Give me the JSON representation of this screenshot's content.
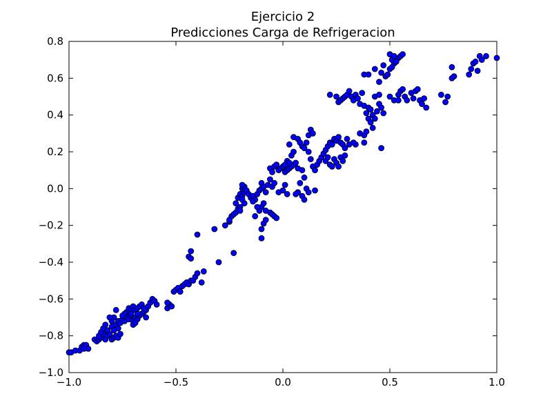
{
  "chart_data": {
    "type": "scatter",
    "title": "Ejercicio 2",
    "subtitle": "Predicciones Carga de Refrigeracion",
    "xlabel": "",
    "ylabel": "",
    "xlim": [
      -1.0,
      1.0
    ],
    "ylim": [
      -1.0,
      0.8
    ],
    "xticks": [
      -1.0,
      -0.5,
      0.0,
      0.5,
      1.0
    ],
    "yticks": [
      -1.0,
      -0.8,
      -0.6,
      -0.4,
      -0.2,
      0.0,
      0.2,
      0.4,
      0.6,
      0.8
    ],
    "xtick_labels": [
      "−1.0",
      "−0.5",
      "0.0",
      "0.5",
      "1.0"
    ],
    "ytick_labels": [
      "−1.0",
      "−0.8",
      "−0.6",
      "−0.4",
      "−0.2",
      "0.0",
      "0.2",
      "0.4",
      "0.6",
      "0.8"
    ],
    "grid": false,
    "legend": false,
    "marker_color": "#0000ff",
    "marker_edge_color": "#000000",
    "points": [
      [
        -1.0,
        -0.89
      ],
      [
        -0.99,
        -0.89
      ],
      [
        -0.97,
        -0.88
      ],
      [
        -0.95,
        -0.88
      ],
      [
        -0.94,
        -0.86
      ],
      [
        -0.93,
        -0.85
      ],
      [
        -0.92,
        -0.85
      ],
      [
        -0.91,
        -0.87
      ],
      [
        -0.93,
        -0.87
      ],
      [
        -0.88,
        -0.82
      ],
      [
        -0.87,
        -0.83
      ],
      [
        -0.86,
        -0.82
      ],
      [
        -0.85,
        -0.81
      ],
      [
        -0.86,
        -0.8
      ],
      [
        -0.84,
        -0.79
      ],
      [
        -0.83,
        -0.82
      ],
      [
        -0.82,
        -0.8
      ],
      [
        -0.81,
        -0.79
      ],
      [
        -0.8,
        -0.82
      ],
      [
        -0.79,
        -0.81
      ],
      [
        -0.78,
        -0.8
      ],
      [
        -0.77,
        -0.81
      ],
      [
        -0.76,
        -0.79
      ],
      [
        -0.83,
        -0.74
      ],
      [
        -0.8,
        -0.75
      ],
      [
        -0.79,
        -0.77
      ],
      [
        -0.78,
        -0.74
      ],
      [
        -0.82,
        -0.77
      ],
      [
        -0.85,
        -0.78
      ],
      [
        -0.8,
        -0.72
      ],
      [
        -0.79,
        -0.7
      ],
      [
        -0.77,
        -0.72
      ],
      [
        -0.76,
        -0.73
      ],
      [
        -0.75,
        -0.71
      ],
      [
        -0.74,
        -0.72
      ],
      [
        -0.73,
        -0.7
      ],
      [
        -0.72,
        -0.71
      ],
      [
        -0.71,
        -0.69
      ],
      [
        -0.7,
        -0.72
      ],
      [
        -0.69,
        -0.7
      ],
      [
        -0.68,
        -0.71
      ],
      [
        -0.67,
        -0.69
      ],
      [
        -0.66,
        -0.68
      ],
      [
        -0.65,
        -0.67
      ],
      [
        -0.64,
        -0.66
      ],
      [
        -0.73,
        -0.67
      ],
      [
        -0.72,
        -0.65
      ],
      [
        -0.71,
        -0.66
      ],
      [
        -0.7,
        -0.64
      ],
      [
        -0.69,
        -0.66
      ],
      [
        -0.68,
        -0.65
      ],
      [
        -0.67,
        -0.64
      ],
      [
        -0.66,
        -0.63
      ],
      [
        -0.65,
        -0.65
      ],
      [
        -0.63,
        -0.64
      ],
      [
        -0.62,
        -0.62
      ],
      [
        -0.61,
        -0.6
      ],
      [
        -0.6,
        -0.61
      ],
      [
        -0.59,
        -0.63
      ],
      [
        -0.78,
        -0.66
      ],
      [
        -0.74,
        -0.68
      ],
      [
        -0.75,
        -0.69
      ],
      [
        -0.7,
        -0.74
      ],
      [
        -0.69,
        -0.73
      ],
      [
        -0.81,
        -0.7
      ],
      [
        -0.84,
        -0.76
      ],
      [
        -0.77,
        -0.76
      ],
      [
        -0.71,
        -0.68
      ],
      [
        -0.68,
        -0.68
      ],
      [
        -0.64,
        -0.7
      ],
      [
        -0.54,
        -0.65
      ],
      [
        -0.53,
        -0.63
      ],
      [
        -0.54,
        -0.62
      ],
      [
        -0.52,
        -0.64
      ],
      [
        -0.51,
        -0.56
      ],
      [
        -0.5,
        -0.55
      ],
      [
        -0.49,
        -0.54
      ],
      [
        -0.48,
        -0.56
      ],
      [
        -0.47,
        -0.53
      ],
      [
        -0.46,
        -0.52
      ],
      [
        -0.45,
        -0.51
      ],
      [
        -0.44,
        -0.52
      ],
      [
        -0.43,
        -0.5
      ],
      [
        -0.42,
        -0.5
      ],
      [
        -0.41,
        -0.48
      ],
      [
        -0.4,
        -0.46
      ],
      [
        -0.38,
        -0.51
      ],
      [
        -0.37,
        -0.45
      ],
      [
        -0.44,
        -0.37
      ],
      [
        -0.43,
        -0.34
      ],
      [
        -0.43,
        -0.38
      ],
      [
        -0.4,
        -0.25
      ],
      [
        -0.3,
        -0.4
      ],
      [
        -0.32,
        -0.22
      ],
      [
        -0.23,
        -0.35
      ],
      [
        -0.27,
        -0.2
      ],
      [
        -0.25,
        -0.18
      ],
      [
        -0.24,
        -0.15
      ],
      [
        -0.23,
        -0.14
      ],
      [
        -0.22,
        -0.13
      ],
      [
        -0.21,
        -0.11
      ],
      [
        -0.2,
        -0.1
      ],
      [
        -0.25,
        -0.17
      ],
      [
        -0.22,
        -0.08
      ],
      [
        -0.21,
        -0.05
      ],
      [
        -0.2,
        -0.03
      ],
      [
        -0.19,
        -0.04
      ],
      [
        -0.18,
        -0.02
      ],
      [
        -0.19,
        -0.06
      ],
      [
        -0.18,
        -0.08
      ],
      [
        -0.2,
        -0.12
      ],
      [
        -0.19,
        0.0
      ],
      [
        -0.18,
        0.01
      ],
      [
        -0.19,
        0.02
      ],
      [
        -0.17,
        -0.01
      ],
      [
        -0.16,
        -0.03
      ],
      [
        -0.15,
        -0.05
      ],
      [
        -0.14,
        -0.04
      ],
      [
        -0.13,
        -0.06
      ],
      [
        -0.12,
        -0.03
      ],
      [
        -0.11,
        -0.01
      ],
      [
        -0.1,
        0.0
      ],
      [
        -0.1,
        0.03
      ],
      [
        -0.09,
        0.01
      ],
      [
        -0.08,
        -0.02
      ],
      [
        -0.07,
        0.02
      ],
      [
        -0.06,
        0.05
      ],
      [
        -0.05,
        0.01
      ],
      [
        -0.04,
        0.03
      ],
      [
        -0.1,
        -0.22
      ],
      [
        -0.1,
        -0.27
      ],
      [
        -0.09,
        -0.19
      ],
      [
        -0.08,
        -0.17
      ],
      [
        -0.06,
        -0.13
      ],
      [
        -0.05,
        -0.14
      ],
      [
        -0.04,
        -0.15
      ],
      [
        -0.03,
        -0.16
      ],
      [
        -0.08,
        -0.12
      ],
      [
        -0.09,
        -0.08
      ],
      [
        -0.1,
        -0.1
      ],
      [
        -0.11,
        -0.12
      ],
      [
        -0.13,
        -0.15
      ],
      [
        -0.14,
        -0.07
      ],
      [
        -0.12,
        -0.1
      ],
      [
        -0.06,
        0.11
      ],
      [
        -0.05,
        0.09
      ],
      [
        -0.04,
        0.12
      ],
      [
        -0.03,
        0.13
      ],
      [
        -0.02,
        0.1
      ],
      [
        -0.01,
        0.11
      ],
      [
        0.0,
        0.12
      ],
      [
        0.01,
        0.09
      ],
      [
        0.02,
        0.1
      ],
      [
        0.03,
        0.11
      ],
      [
        0.04,
        0.12
      ],
      [
        0.05,
        0.13
      ],
      [
        0.06,
        0.14
      ],
      [
        0.07,
        0.11
      ],
      [
        0.02,
        0.15
      ],
      [
        0.04,
        0.18
      ],
      [
        0.05,
        0.2
      ],
      [
        0.03,
        0.14
      ],
      [
        0.01,
        0.13
      ],
      [
        0.03,
        0.24
      ],
      [
        0.05,
        0.28
      ],
      [
        0.07,
        0.27
      ],
      [
        0.08,
        0.25
      ],
      [
        0.09,
        0.23
      ],
      [
        0.1,
        0.22
      ],
      [
        0.11,
        0.25
      ],
      [
        0.12,
        0.29
      ],
      [
        0.13,
        0.32
      ],
      [
        0.14,
        0.3
      ],
      [
        0.12,
        0.2
      ],
      [
        0.13,
        0.16
      ],
      [
        0.14,
        0.12
      ],
      [
        0.15,
        0.1
      ],
      [
        0.16,
        0.13
      ],
      [
        0.17,
        0.15
      ],
      [
        0.18,
        0.17
      ],
      [
        0.19,
        0.19
      ],
      [
        0.2,
        0.21
      ],
      [
        0.21,
        0.23
      ],
      [
        0.22,
        0.25
      ],
      [
        0.23,
        0.24
      ],
      [
        0.24,
        0.27
      ],
      [
        0.25,
        0.26
      ],
      [
        0.26,
        0.28
      ],
      [
        0.27,
        0.25
      ],
      [
        0.28,
        0.24
      ],
      [
        0.29,
        0.22
      ],
      [
        0.3,
        0.27
      ],
      [
        0.31,
        0.24
      ],
      [
        0.2,
        0.15
      ],
      [
        0.21,
        0.17
      ],
      [
        0.22,
        0.13
      ],
      [
        0.23,
        0.12
      ],
      [
        0.24,
        0.16
      ],
      [
        0.25,
        0.14
      ],
      [
        0.26,
        0.12
      ],
      [
        0.27,
        0.17
      ],
      [
        0.28,
        0.15
      ],
      [
        0.29,
        0.18
      ],
      [
        0.1,
        0.06
      ],
      [
        0.09,
        0.1
      ],
      [
        0.08,
        0.03
      ],
      [
        0.07,
        -0.02
      ],
      [
        0.09,
        -0.04
      ],
      [
        0.1,
        -0.06
      ],
      [
        0.06,
        -0.03
      ],
      [
        0.11,
        0.0
      ],
      [
        0.12,
        -0.02
      ],
      [
        0.15,
        -0.01
      ],
      [
        0.0,
        -0.01
      ],
      [
        0.01,
        0.02
      ],
      [
        0.02,
        -0.03
      ],
      [
        -0.02,
        -0.02
      ],
      [
        0.22,
        0.51
      ],
      [
        0.25,
        0.5
      ],
      [
        0.26,
        0.47
      ],
      [
        0.27,
        0.48
      ],
      [
        0.28,
        0.49
      ],
      [
        0.29,
        0.5
      ],
      [
        0.3,
        0.51
      ],
      [
        0.31,
        0.53
      ],
      [
        0.32,
        0.5
      ],
      [
        0.33,
        0.48
      ],
      [
        0.34,
        0.51
      ],
      [
        0.35,
        0.49
      ],
      [
        0.36,
        0.46
      ],
      [
        0.37,
        0.52
      ],
      [
        0.38,
        0.45
      ],
      [
        0.39,
        0.41
      ],
      [
        0.4,
        0.44
      ],
      [
        0.41,
        0.43
      ],
      [
        0.42,
        0.4
      ],
      [
        0.43,
        0.38
      ],
      [
        0.44,
        0.42
      ],
      [
        0.45,
        0.46
      ],
      [
        0.46,
        0.44
      ],
      [
        0.47,
        0.41
      ],
      [
        0.4,
        0.38
      ],
      [
        0.41,
        0.36
      ],
      [
        0.42,
        0.33
      ],
      [
        0.36,
        0.3
      ],
      [
        0.34,
        0.24
      ],
      [
        0.33,
        0.25
      ],
      [
        0.38,
        0.25
      ],
      [
        0.38,
        0.29
      ],
      [
        0.39,
        0.31
      ],
      [
        0.46,
        0.22
      ],
      [
        0.43,
        0.5
      ],
      [
        0.45,
        0.51
      ],
      [
        0.48,
        0.61
      ],
      [
        0.49,
        0.62
      ],
      [
        0.5,
        0.65
      ],
      [
        0.51,
        0.66
      ],
      [
        0.52,
        0.68
      ],
      [
        0.53,
        0.7
      ],
      [
        0.54,
        0.71
      ],
      [
        0.55,
        0.72
      ],
      [
        0.56,
        0.73
      ],
      [
        0.5,
        0.73
      ],
      [
        0.51,
        0.7
      ],
      [
        0.52,
        0.72
      ],
      [
        0.53,
        0.69
      ],
      [
        0.45,
        0.58
      ],
      [
        0.46,
        0.63
      ],
      [
        0.47,
        0.67
      ],
      [
        0.43,
        0.65
      ],
      [
        0.4,
        0.62
      ],
      [
        0.38,
        0.62
      ],
      [
        0.5,
        0.5
      ],
      [
        0.52,
        0.48
      ],
      [
        0.54,
        0.51
      ],
      [
        0.55,
        0.53
      ],
      [
        0.56,
        0.54
      ],
      [
        0.57,
        0.5
      ],
      [
        0.58,
        0.48
      ],
      [
        0.6,
        0.52
      ],
      [
        0.61,
        0.49
      ],
      [
        0.62,
        0.53
      ],
      [
        0.63,
        0.54
      ],
      [
        0.64,
        0.48
      ],
      [
        0.65,
        0.46
      ],
      [
        0.66,
        0.49
      ],
      [
        0.67,
        0.44
      ],
      [
        0.54,
        0.48
      ],
      [
        0.74,
        0.51
      ],
      [
        0.76,
        0.47
      ],
      [
        0.77,
        0.5
      ],
      [
        0.79,
        0.6
      ],
      [
        0.8,
        0.61
      ],
      [
        0.79,
        0.66
      ],
      [
        0.87,
        0.62
      ],
      [
        0.88,
        0.65
      ],
      [
        0.89,
        0.68
      ],
      [
        0.9,
        0.69
      ],
      [
        0.91,
        0.64
      ],
      [
        0.92,
        0.72
      ],
      [
        0.93,
        0.7
      ],
      [
        0.95,
        0.72
      ],
      [
        1.0,
        0.71
      ]
    ]
  }
}
